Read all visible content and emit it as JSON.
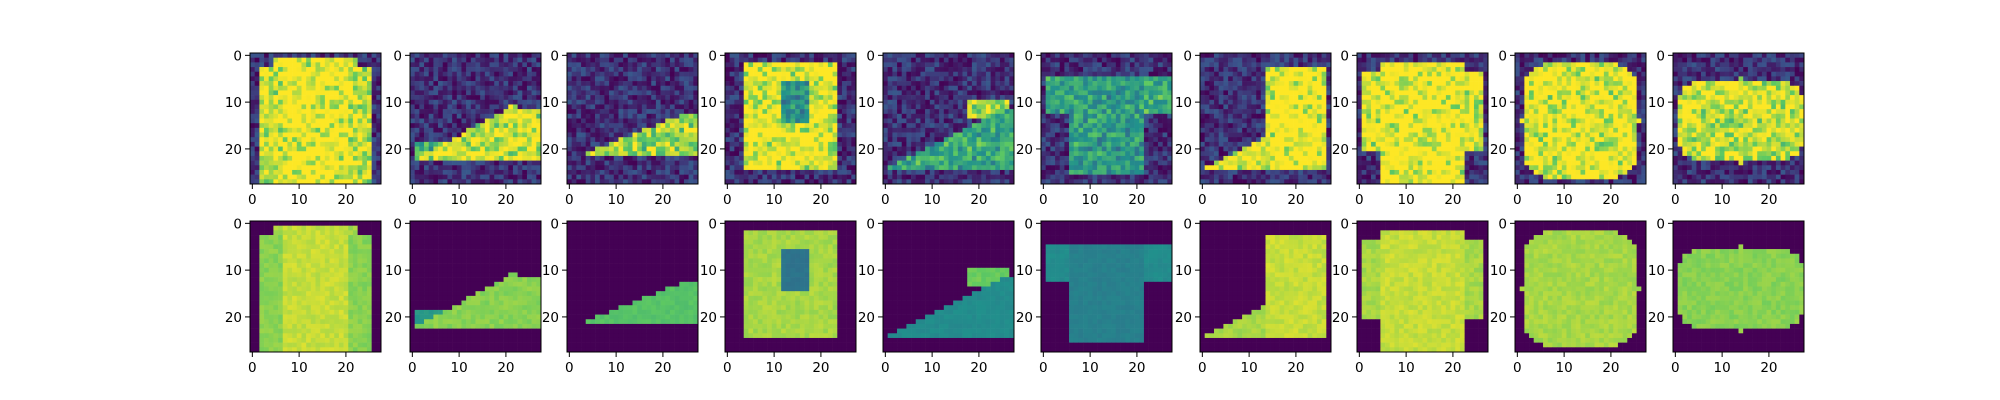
{
  "figure": {
    "background": "#ffffff"
  },
  "chart_data": {
    "type": "heatmap",
    "colormap": "viridis",
    "colormap_stops": [
      "#440154",
      "#3b528b",
      "#21918c",
      "#5ec962",
      "#fde725"
    ],
    "image_size": [
      28,
      28
    ],
    "rows": [
      {
        "name": "noisy"
      },
      {
        "name": "reconstructed"
      }
    ],
    "panels_per_row": 10,
    "items": [
      {
        "shape": "pullover",
        "row1_noise": 0.28,
        "row2_noise": 0.02
      },
      {
        "shape": "sneaker",
        "row1_noise": 0.28,
        "row2_noise": 0.02
      },
      {
        "shape": "sneaker_small",
        "row1_noise": 0.28,
        "row2_noise": 0.02
      },
      {
        "shape": "coat",
        "row1_noise": 0.28,
        "row2_noise": 0.02
      },
      {
        "shape": "sandal",
        "row1_noise": 0.28,
        "row2_noise": 0.02
      },
      {
        "shape": "shirt_faint",
        "row1_noise": 0.28,
        "row2_noise": 0.02
      },
      {
        "shape": "boot",
        "row1_noise": 0.28,
        "row2_noise": 0.02
      },
      {
        "shape": "shirt",
        "row1_noise": 0.28,
        "row2_noise": 0.02
      },
      {
        "shape": "bag",
        "row1_noise": 0.28,
        "row2_noise": 0.02
      },
      {
        "shape": "bag_wide",
        "row1_noise": 0.28,
        "row2_noise": 0.02
      }
    ],
    "x_ticks": [
      0,
      10,
      20
    ],
    "y_ticks": [
      0,
      10,
      20
    ],
    "x_tick_labels": [
      "0",
      "10",
      "20"
    ],
    "y_tick_labels": [
      "0",
      "10",
      "20"
    ],
    "xlim": [
      -0.5,
      27.5
    ],
    "ylim": [
      27.5,
      -0.5
    ],
    "grid": false,
    "legend": "none"
  }
}
